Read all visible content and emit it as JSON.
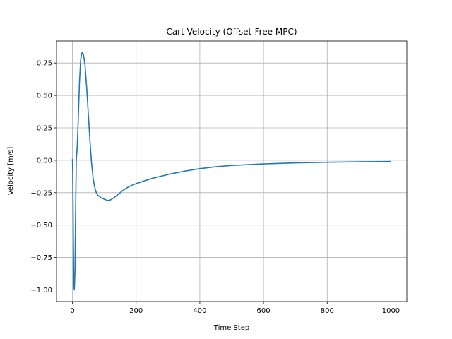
{
  "chart_data": {
    "type": "line",
    "title": "Cart Velocity (Offset-Free MPC)",
    "xlabel": "Time Step",
    "ylabel": "Velocity [m/s]",
    "xlim": [
      -50,
      1050
    ],
    "ylim": [
      -1.09,
      0.92
    ],
    "xticks": [
      0,
      200,
      400,
      600,
      800,
      1000
    ],
    "yticks": [
      -1.0,
      -0.75,
      -0.5,
      -0.25,
      0.0,
      0.25,
      0.5,
      0.75
    ],
    "xtick_labels": [
      "0",
      "200",
      "400",
      "600",
      "800",
      "1000"
    ],
    "ytick_labels": [
      "−1.00",
      "−0.75",
      "−0.50",
      "−0.25",
      "0.00",
      "0.25",
      "0.50",
      "0.75"
    ],
    "grid": true,
    "series": [
      {
        "color": "#1f77b4",
        "x": [
          0,
          1,
          2,
          3,
          4,
          5,
          6,
          8,
          10,
          12,
          15,
          18,
          22,
          26,
          30,
          34,
          37,
          40,
          45,
          50,
          55,
          60,
          65,
          70,
          75,
          80,
          90,
          100,
          110,
          115,
          120,
          130,
          140,
          160,
          180,
          200,
          250,
          300,
          350,
          400,
          450,
          500,
          600,
          700,
          800,
          900,
          1000
        ],
        "y": [
          0.01,
          -0.1,
          -0.35,
          -0.65,
          -0.88,
          -0.98,
          -1.0,
          -0.85,
          -0.4,
          0.0,
          0.1,
          0.3,
          0.6,
          0.78,
          0.83,
          0.82,
          0.78,
          0.72,
          0.55,
          0.35,
          0.15,
          -0.02,
          -0.14,
          -0.21,
          -0.25,
          -0.27,
          -0.29,
          -0.3,
          -0.31,
          -0.31,
          -0.305,
          -0.29,
          -0.27,
          -0.23,
          -0.2,
          -0.18,
          -0.14,
          -0.11,
          -0.085,
          -0.065,
          -0.05,
          -0.04,
          -0.028,
          -0.02,
          -0.015,
          -0.012,
          -0.01
        ]
      }
    ]
  }
}
